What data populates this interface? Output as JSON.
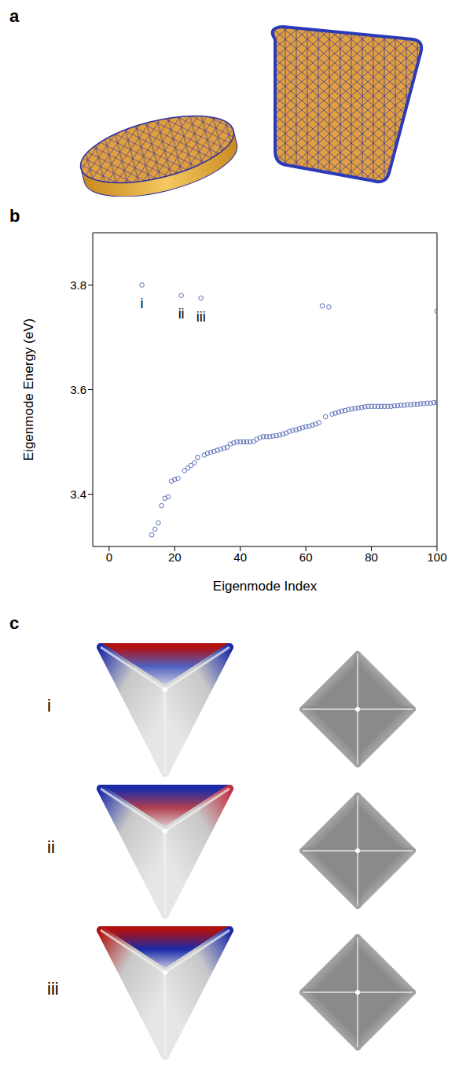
{
  "panel_labels": [
    "a",
    "b",
    "c"
  ],
  "chart_data": {
    "type": "scatter",
    "xlabel": "Eigenmode Index",
    "ylabel": "Eigenmode Energy (eV)",
    "x": [
      10,
      13,
      14,
      15,
      16,
      17,
      18,
      19,
      20,
      21,
      22,
      23,
      24,
      25,
      26,
      27,
      28,
      29,
      30,
      31,
      32,
      33,
      34,
      35,
      36,
      37,
      38,
      39,
      40,
      41,
      42,
      43,
      44,
      45,
      46,
      47,
      48,
      49,
      50,
      51,
      52,
      53,
      54,
      55,
      56,
      57,
      58,
      59,
      60,
      61,
      62,
      63,
      64,
      65,
      66,
      67,
      68,
      69,
      70,
      71,
      72,
      73,
      74,
      75,
      76,
      77,
      78,
      79,
      80,
      81,
      82,
      83,
      84,
      85,
      86,
      87,
      88,
      89,
      90,
      91,
      92,
      93,
      94,
      95,
      96,
      97,
      98,
      99,
      100,
      100
    ],
    "values": [
      3.8,
      3.322,
      3.333,
      3.345,
      3.378,
      3.392,
      3.395,
      3.425,
      3.428,
      3.43,
      3.78,
      3.445,
      3.45,
      3.455,
      3.46,
      3.47,
      3.775,
      3.475,
      3.478,
      3.48,
      3.482,
      3.484,
      3.486,
      3.488,
      3.49,
      3.496,
      3.498,
      3.5,
      3.5,
      3.5,
      3.5,
      3.5,
      3.501,
      3.505,
      3.508,
      3.51,
      3.51,
      3.51,
      3.511,
      3.512,
      3.513,
      3.515,
      3.517,
      3.52,
      3.522,
      3.523,
      3.525,
      3.527,
      3.529,
      3.53,
      3.532,
      3.534,
      3.537,
      3.76,
      3.548,
      3.758,
      3.553,
      3.555,
      3.557,
      3.559,
      3.56,
      3.562,
      3.563,
      3.564,
      3.565,
      3.566,
      3.567,
      3.568,
      3.568,
      3.568,
      3.568,
      3.568,
      3.568,
      3.568,
      3.568,
      3.569,
      3.569,
      3.57,
      3.57,
      3.571,
      3.571,
      3.572,
      3.572,
      3.573,
      3.573,
      3.574,
      3.574,
      3.575,
      3.576,
      3.75
    ],
    "color": "#5a6fb8",
    "marker": "circle-open",
    "xlim": [
      -5,
      100
    ],
    "xticks": [
      0,
      20,
      40,
      60,
      80,
      100
    ],
    "ylim": [
      3.3,
      3.9
    ],
    "yticks": [
      3.4,
      3.6,
      3.8
    ],
    "grid": false,
    "annotations": [
      {
        "text": "i",
        "x": 10,
        "y": 3.765
      },
      {
        "text": "ii",
        "x": 22,
        "y": 3.745
      },
      {
        "text": "iii",
        "x": 28,
        "y": 3.74
      }
    ]
  },
  "mode_maps": {
    "rows": [
      "i",
      "ii",
      "iii"
    ]
  }
}
